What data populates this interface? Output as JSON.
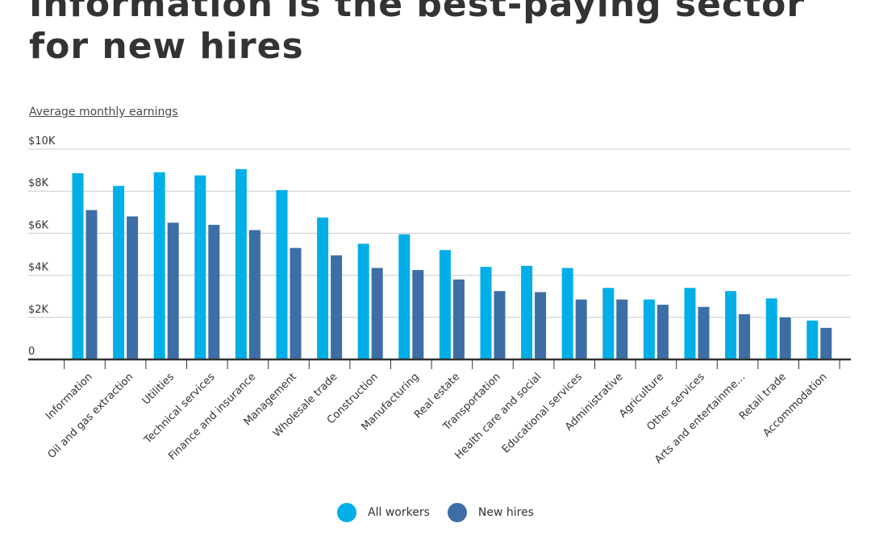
{
  "header": {
    "title": "Information is the best-paying sector for new hires",
    "subtitle": "Average monthly earnings"
  },
  "colors": {
    "all_workers": "#00aee8",
    "new_hires": "#3d6ea5",
    "grid": "#cccccc",
    "axis": "#333333"
  },
  "chart_data": {
    "type": "bar",
    "title": "Information is the best-paying sector for new hires",
    "subtitle": "Average monthly earnings",
    "xlabel": "",
    "ylabel": "",
    "ylim": [
      0,
      10000
    ],
    "yticks": [
      0,
      2000,
      4000,
      6000,
      8000,
      10000
    ],
    "ytick_labels": [
      "0",
      "$2K",
      "$4K",
      "$6K",
      "$8K",
      "$10K"
    ],
    "grid": true,
    "legend_position": "bottom",
    "categories": [
      "Information",
      "Oil and gas extraction",
      "Utilities",
      "Technical services",
      "Finance and insurance",
      "Management",
      "Wholesale trade",
      "Construction",
      "Manufacturing",
      "Real estate",
      "Transportation",
      "Health care and social",
      "Educational services",
      "Administrative",
      "Agriculture",
      "Other services",
      "Arts and entertainme…",
      "Retail trade",
      "Accommodation"
    ],
    "series": [
      {
        "name": "All workers",
        "values": [
          8850,
          8250,
          8900,
          8750,
          9050,
          8050,
          6750,
          5500,
          5950,
          5200,
          4400,
          4450,
          4350,
          3400,
          2850,
          3400,
          3250,
          2900,
          1850
        ]
      },
      {
        "name": "New hires",
        "values": [
          7100,
          6800,
          6500,
          6400,
          6150,
          5300,
          4950,
          4350,
          4250,
          3800,
          3250,
          3200,
          2850,
          2850,
          2600,
          2500,
          2150,
          2000,
          1500
        ]
      }
    ]
  }
}
